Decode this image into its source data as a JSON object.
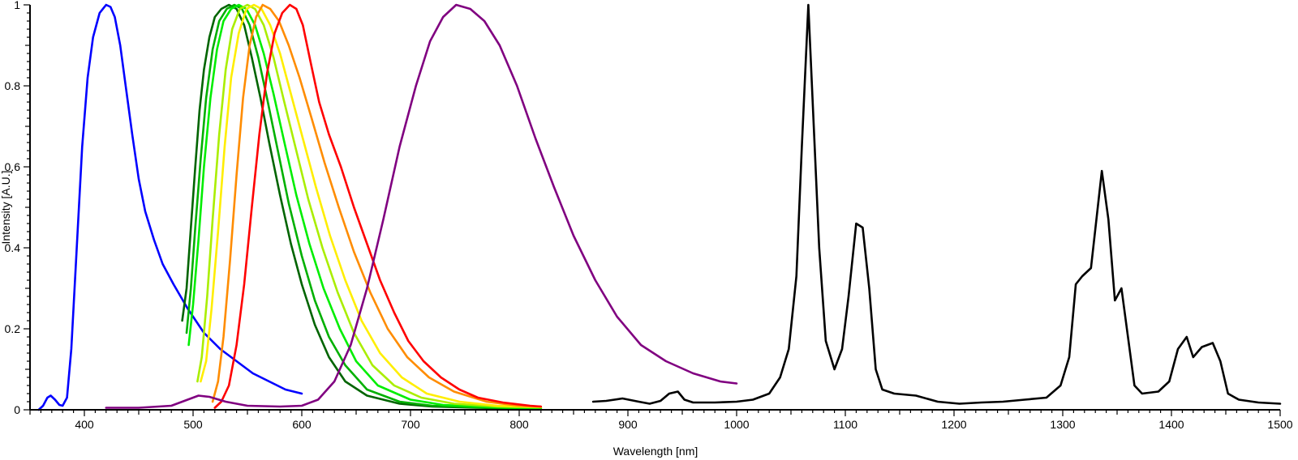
{
  "chart_data": {
    "type": "line",
    "title": "",
    "xlabel": "Wavelength [nm]",
    "ylabel": "Intensity [A.U.]",
    "xlim": [
      350,
      1500
    ],
    "ylim": [
      0,
      1
    ],
    "grid": false,
    "legend": "none",
    "x_ticks": [
      400,
      500,
      600,
      700,
      800,
      900,
      1000,
      1100,
      1200,
      1300,
      1400,
      1500
    ],
    "x_tick_labels": [
      "400",
      "500",
      "600",
      "700",
      "800",
      "900",
      "1000",
      "1100",
      "1200",
      "1300",
      "1400",
      "1500"
    ],
    "y_ticks": [
      0,
      0.2,
      0.4,
      0.6,
      0.8,
      1
    ],
    "y_tick_labels": [
      "0",
      "0.2",
      "0.4",
      "0.6",
      "0.8",
      "1"
    ],
    "series": [
      {
        "color": "#0000ff",
        "points": [
          [
            358,
            0.0
          ],
          [
            362,
            0.01
          ],
          [
            366,
            0.03
          ],
          [
            369,
            0.035
          ],
          [
            373,
            0.025
          ],
          [
            377,
            0.012
          ],
          [
            380,
            0.01
          ],
          [
            384,
            0.03
          ],
          [
            388,
            0.15
          ],
          [
            393,
            0.4
          ],
          [
            398,
            0.65
          ],
          [
            403,
            0.82
          ],
          [
            408,
            0.92
          ],
          [
            414,
            0.98
          ],
          [
            420,
            1.0
          ],
          [
            424,
            0.995
          ],
          [
            428,
            0.97
          ],
          [
            433,
            0.9
          ],
          [
            438,
            0.8
          ],
          [
            444,
            0.68
          ],
          [
            450,
            0.57
          ],
          [
            456,
            0.49
          ],
          [
            464,
            0.42
          ],
          [
            472,
            0.36
          ],
          [
            482,
            0.31
          ],
          [
            495,
            0.25
          ],
          [
            510,
            0.19
          ],
          [
            525,
            0.15
          ],
          [
            540,
            0.12
          ],
          [
            555,
            0.09
          ],
          [
            570,
            0.07
          ],
          [
            585,
            0.05
          ],
          [
            600,
            0.04
          ]
        ]
      },
      {
        "color": "#006400",
        "points": [
          [
            490,
            0.22
          ],
          [
            494,
            0.3
          ],
          [
            498,
            0.45
          ],
          [
            502,
            0.6
          ],
          [
            506,
            0.74
          ],
          [
            510,
            0.84
          ],
          [
            515,
            0.92
          ],
          [
            520,
            0.97
          ],
          [
            526,
            0.99
          ],
          [
            533,
            1.0
          ],
          [
            540,
            0.99
          ],
          [
            547,
            0.95
          ],
          [
            554,
            0.87
          ],
          [
            562,
            0.77
          ],
          [
            570,
            0.66
          ],
          [
            580,
            0.53
          ],
          [
            590,
            0.41
          ],
          [
            600,
            0.31
          ],
          [
            612,
            0.21
          ],
          [
            625,
            0.13
          ],
          [
            640,
            0.07
          ],
          [
            660,
            0.035
          ],
          [
            690,
            0.015
          ],
          [
            720,
            0.008
          ],
          [
            760,
            0.005
          ],
          [
            800,
            0.003
          ],
          [
            820,
            0.003
          ]
        ]
      },
      {
        "color": "#00b000",
        "points": [
          [
            494,
            0.19
          ],
          [
            498,
            0.3
          ],
          [
            502,
            0.45
          ],
          [
            507,
            0.62
          ],
          [
            512,
            0.77
          ],
          [
            518,
            0.89
          ],
          [
            524,
            0.96
          ],
          [
            531,
            0.99
          ],
          [
            538,
            1.0
          ],
          [
            545,
            0.99
          ],
          [
            552,
            0.95
          ],
          [
            560,
            0.87
          ],
          [
            568,
            0.77
          ],
          [
            578,
            0.64
          ],
          [
            588,
            0.51
          ],
          [
            600,
            0.38
          ],
          [
            612,
            0.27
          ],
          [
            625,
            0.18
          ],
          [
            640,
            0.11
          ],
          [
            660,
            0.05
          ],
          [
            690,
            0.02
          ],
          [
            720,
            0.01
          ],
          [
            760,
            0.006
          ],
          [
            800,
            0.004
          ],
          [
            820,
            0.004
          ]
        ]
      },
      {
        "color": "#00ee00",
        "points": [
          [
            496,
            0.16
          ],
          [
            500,
            0.26
          ],
          [
            505,
            0.42
          ],
          [
            510,
            0.6
          ],
          [
            516,
            0.77
          ],
          [
            522,
            0.89
          ],
          [
            528,
            0.96
          ],
          [
            535,
            0.99
          ],
          [
            542,
            1.0
          ],
          [
            549,
            0.99
          ],
          [
            557,
            0.95
          ],
          [
            565,
            0.88
          ],
          [
            574,
            0.78
          ],
          [
            584,
            0.66
          ],
          [
            595,
            0.53
          ],
          [
            607,
            0.41
          ],
          [
            620,
            0.3
          ],
          [
            635,
            0.2
          ],
          [
            650,
            0.12
          ],
          [
            670,
            0.06
          ],
          [
            700,
            0.025
          ],
          [
            730,
            0.012
          ],
          [
            770,
            0.007
          ],
          [
            800,
            0.005
          ],
          [
            820,
            0.005
          ]
        ]
      },
      {
        "color": "#aaee00",
        "points": [
          [
            504,
            0.07
          ],
          [
            508,
            0.13
          ],
          [
            513,
            0.28
          ],
          [
            518,
            0.47
          ],
          [
            524,
            0.68
          ],
          [
            530,
            0.84
          ],
          [
            536,
            0.94
          ],
          [
            543,
            0.99
          ],
          [
            550,
            1.0
          ],
          [
            557,
            0.99
          ],
          [
            565,
            0.95
          ],
          [
            574,
            0.87
          ],
          [
            583,
            0.77
          ],
          [
            594,
            0.65
          ],
          [
            606,
            0.52
          ],
          [
            619,
            0.4
          ],
          [
            633,
            0.29
          ],
          [
            648,
            0.19
          ],
          [
            665,
            0.11
          ],
          [
            685,
            0.06
          ],
          [
            710,
            0.03
          ],
          [
            740,
            0.015
          ],
          [
            780,
            0.008
          ],
          [
            820,
            0.006
          ]
        ]
      },
      {
        "color": "#ffee00",
        "points": [
          [
            507,
            0.07
          ],
          [
            512,
            0.12
          ],
          [
            517,
            0.25
          ],
          [
            523,
            0.44
          ],
          [
            529,
            0.65
          ],
          [
            535,
            0.82
          ],
          [
            542,
            0.93
          ],
          [
            549,
            0.99
          ],
          [
            556,
            1.0
          ],
          [
            563,
            0.99
          ],
          [
            571,
            0.95
          ],
          [
            580,
            0.88
          ],
          [
            590,
            0.78
          ],
          [
            601,
            0.67
          ],
          [
            613,
            0.55
          ],
          [
            626,
            0.43
          ],
          [
            640,
            0.32
          ],
          [
            655,
            0.22
          ],
          [
            672,
            0.14
          ],
          [
            692,
            0.08
          ],
          [
            715,
            0.04
          ],
          [
            745,
            0.02
          ],
          [
            780,
            0.01
          ],
          [
            820,
            0.007
          ]
        ]
      },
      {
        "color": "#ff8c00",
        "points": [
          [
            518,
            0.02
          ],
          [
            523,
            0.07
          ],
          [
            528,
            0.18
          ],
          [
            534,
            0.37
          ],
          [
            540,
            0.58
          ],
          [
            546,
            0.77
          ],
          [
            552,
            0.9
          ],
          [
            558,
            0.97
          ],
          [
            564,
            1.0
          ],
          [
            571,
            0.99
          ],
          [
            579,
            0.96
          ],
          [
            588,
            0.9
          ],
          [
            598,
            0.82
          ],
          [
            609,
            0.72
          ],
          [
            621,
            0.61
          ],
          [
            634,
            0.5
          ],
          [
            648,
            0.39
          ],
          [
            663,
            0.29
          ],
          [
            679,
            0.2
          ],
          [
            697,
            0.13
          ],
          [
            717,
            0.08
          ],
          [
            740,
            0.045
          ],
          [
            770,
            0.02
          ],
          [
            800,
            0.01
          ],
          [
            820,
            0.008
          ]
        ]
      },
      {
        "color": "#ff0000",
        "points": [
          [
            520,
            0.005
          ],
          [
            526,
            0.02
          ],
          [
            533,
            0.06
          ],
          [
            540,
            0.16
          ],
          [
            547,
            0.31
          ],
          [
            554,
            0.5
          ],
          [
            561,
            0.68
          ],
          [
            568,
            0.83
          ],
          [
            575,
            0.93
          ],
          [
            582,
            0.98
          ],
          [
            589,
            1.0
          ],
          [
            595,
            0.99
          ],
          [
            601,
            0.95
          ],
          [
            608,
            0.86
          ],
          [
            616,
            0.76
          ],
          [
            625,
            0.68
          ],
          [
            636,
            0.6
          ],
          [
            648,
            0.5
          ],
          [
            660,
            0.41
          ],
          [
            672,
            0.32
          ],
          [
            685,
            0.24
          ],
          [
            698,
            0.17
          ],
          [
            712,
            0.12
          ],
          [
            728,
            0.08
          ],
          [
            745,
            0.05
          ],
          [
            762,
            0.03
          ],
          [
            785,
            0.018
          ],
          [
            810,
            0.01
          ],
          [
            820,
            0.008
          ]
        ]
      },
      {
        "color": "#800080",
        "points": [
          [
            420,
            0.005
          ],
          [
            450,
            0.005
          ],
          [
            480,
            0.01
          ],
          [
            495,
            0.025
          ],
          [
            505,
            0.035
          ],
          [
            515,
            0.032
          ],
          [
            530,
            0.02
          ],
          [
            550,
            0.01
          ],
          [
            580,
            0.008
          ],
          [
            600,
            0.01
          ],
          [
            615,
            0.025
          ],
          [
            630,
            0.07
          ],
          [
            645,
            0.16
          ],
          [
            660,
            0.3
          ],
          [
            675,
            0.47
          ],
          [
            690,
            0.65
          ],
          [
            705,
            0.8
          ],
          [
            718,
            0.91
          ],
          [
            730,
            0.97
          ],
          [
            742,
            1.0
          ],
          [
            755,
            0.99
          ],
          [
            768,
            0.96
          ],
          [
            782,
            0.9
          ],
          [
            798,
            0.8
          ],
          [
            815,
            0.67
          ],
          [
            832,
            0.55
          ],
          [
            850,
            0.43
          ],
          [
            870,
            0.32
          ],
          [
            890,
            0.23
          ],
          [
            912,
            0.16
          ],
          [
            935,
            0.12
          ],
          [
            960,
            0.09
          ],
          [
            985,
            0.07
          ],
          [
            1000,
            0.065
          ]
        ]
      },
      {
        "color": "#000000",
        "points": [
          [
            868,
            0.02
          ],
          [
            880,
            0.022
          ],
          [
            895,
            0.028
          ],
          [
            910,
            0.02
          ],
          [
            920,
            0.015
          ],
          [
            930,
            0.022
          ],
          [
            938,
            0.04
          ],
          [
            946,
            0.045
          ],
          [
            952,
            0.025
          ],
          [
            960,
            0.018
          ],
          [
            980,
            0.018
          ],
          [
            1000,
            0.02
          ],
          [
            1015,
            0.025
          ],
          [
            1030,
            0.04
          ],
          [
            1040,
            0.08
          ],
          [
            1048,
            0.15
          ],
          [
            1055,
            0.33
          ],
          [
            1060,
            0.65
          ],
          [
            1066,
            1.0
          ],
          [
            1071,
            0.7
          ],
          [
            1076,
            0.4
          ],
          [
            1082,
            0.17
          ],
          [
            1090,
            0.1
          ],
          [
            1097,
            0.15
          ],
          [
            1103,
            0.28
          ],
          [
            1110,
            0.46
          ],
          [
            1116,
            0.45
          ],
          [
            1122,
            0.3
          ],
          [
            1128,
            0.1
          ],
          [
            1134,
            0.05
          ],
          [
            1145,
            0.04
          ],
          [
            1165,
            0.035
          ],
          [
            1185,
            0.02
          ],
          [
            1205,
            0.015
          ],
          [
            1225,
            0.018
          ],
          [
            1245,
            0.02
          ],
          [
            1265,
            0.025
          ],
          [
            1285,
            0.03
          ],
          [
            1298,
            0.06
          ],
          [
            1306,
            0.13
          ],
          [
            1312,
            0.31
          ],
          [
            1318,
            0.33
          ],
          [
            1326,
            0.35
          ],
          [
            1336,
            0.59
          ],
          [
            1342,
            0.47
          ],
          [
            1348,
            0.27
          ],
          [
            1354,
            0.3
          ],
          [
            1360,
            0.18
          ],
          [
            1366,
            0.06
          ],
          [
            1373,
            0.04
          ],
          [
            1388,
            0.045
          ],
          [
            1398,
            0.07
          ],
          [
            1406,
            0.15
          ],
          [
            1414,
            0.18
          ],
          [
            1420,
            0.13
          ],
          [
            1428,
            0.155
          ],
          [
            1438,
            0.165
          ],
          [
            1445,
            0.12
          ],
          [
            1452,
            0.04
          ],
          [
            1462,
            0.025
          ],
          [
            1480,
            0.018
          ],
          [
            1500,
            0.015
          ]
        ]
      }
    ]
  }
}
